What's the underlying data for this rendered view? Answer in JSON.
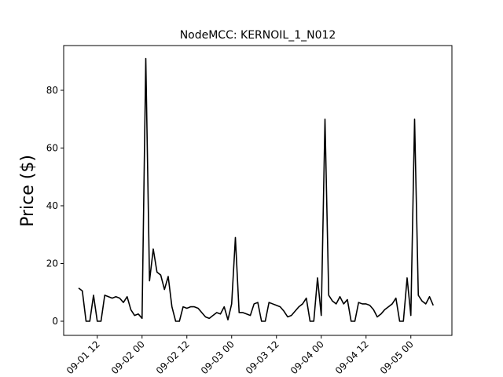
{
  "chart_data": {
    "type": "line",
    "title": "NodeMCC: KERNOIL_1_N012",
    "y_label": "Price ($)",
    "color": "#000000",
    "x": [
      "09-01 07",
      "09-01 08",
      "09-01 09",
      "09-01 10",
      "09-01 11",
      "09-01 12",
      "09-01 13",
      "09-01 14",
      "09-01 15",
      "09-01 16",
      "09-01 17",
      "09-01 18",
      "09-01 19",
      "09-01 20",
      "09-01 21",
      "09-01 22",
      "09-01 23",
      "09-02 00",
      "09-02 01",
      "09-02 02",
      "09-02 03",
      "09-02 04",
      "09-02 05",
      "09-02 06",
      "09-02 07",
      "09-02 08",
      "09-02 09",
      "09-02 10",
      "09-02 11",
      "09-02 12",
      "09-02 13",
      "09-02 14",
      "09-02 15",
      "09-02 16",
      "09-02 17",
      "09-02 18",
      "09-02 19",
      "09-02 20",
      "09-02 21",
      "09-02 22",
      "09-02 23",
      "09-03 00",
      "09-03 01",
      "09-03 02",
      "09-03 03",
      "09-03 04",
      "09-03 05",
      "09-03 06",
      "09-03 07",
      "09-03 08",
      "09-03 09",
      "09-03 10",
      "09-03 11",
      "09-03 12",
      "09-03 13",
      "09-03 14",
      "09-03 15",
      "09-03 16",
      "09-03 17",
      "09-03 18",
      "09-03 19",
      "09-03 20",
      "09-03 21",
      "09-03 22",
      "09-03 23",
      "09-04 00",
      "09-04 01",
      "09-04 02",
      "09-04 03",
      "09-04 04",
      "09-04 05",
      "09-04 06",
      "09-04 07",
      "09-04 08",
      "09-04 09",
      "09-04 10",
      "09-04 11",
      "09-04 12",
      "09-04 13",
      "09-04 14",
      "09-04 15",
      "09-04 16",
      "09-04 17",
      "09-04 18",
      "09-04 19",
      "09-04 20",
      "09-04 21",
      "09-04 22",
      "09-04 23",
      "09-05 00",
      "09-05 01",
      "09-05 02",
      "09-05 03",
      "09-05 04",
      "09-05 05",
      "09-05 06"
    ],
    "values": [
      11.5,
      10.5,
      0,
      0,
      9,
      0,
      0,
      9,
      8.5,
      8,
      8.5,
      8,
      6.5,
      8.5,
      4,
      2,
      2.5,
      1,
      91,
      14,
      25,
      17,
      16,
      11,
      15.5,
      5,
      0,
      0,
      5,
      4.5,
      5,
      5,
      4.5,
      3,
      1.5,
      1,
      2,
      3,
      2.5,
      5,
      0.5,
      6,
      29,
      3,
      3,
      2.5,
      2,
      6,
      6.5,
      0,
      0,
      6.5,
      6,
      5.5,
      5,
      3.5,
      1.5,
      2,
      3.5,
      5,
      6,
      8,
      0,
      0,
      15,
      2,
      70,
      9,
      7,
      6,
      8.5,
      6,
      7.5,
      0,
      0,
      6.5,
      6,
      6,
      5.5,
      4,
      1.5,
      2.5,
      4,
      5,
      6,
      8,
      0,
      0,
      15,
      2,
      70,
      9,
      7,
      6,
      8.5,
      5.5
    ],
    "xlim": [
      "09-01 03",
      "09-05 11"
    ],
    "xticks": [
      "09-01 12",
      "09-02 00",
      "09-02 12",
      "09-03 00",
      "09-03 12",
      "09-04 00",
      "09-04 12",
      "09-05 00"
    ],
    "ylim": [
      -4.9,
      95.5
    ],
    "yticks": [
      0,
      20,
      40,
      60,
      80
    ]
  }
}
